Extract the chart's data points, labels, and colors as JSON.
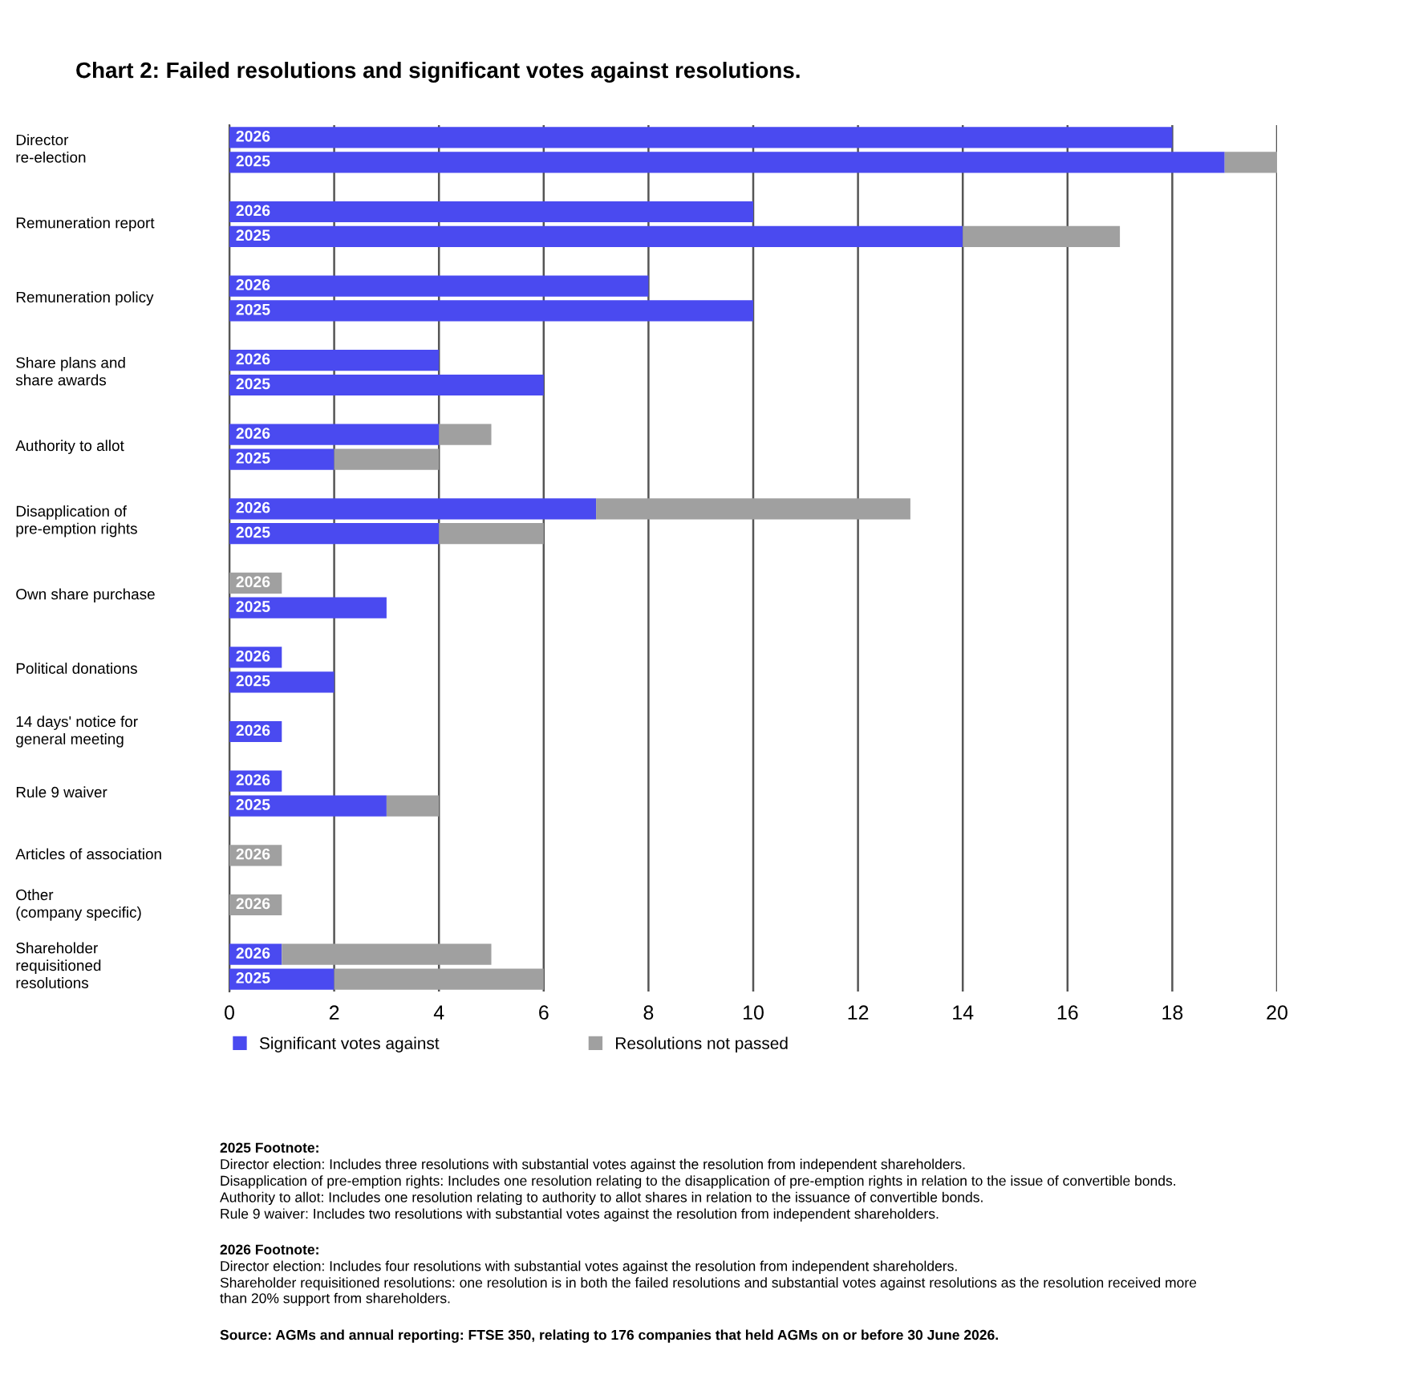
{
  "chart_data": {
    "type": "bar",
    "orientation": "horizontal",
    "stacked": true,
    "title": "Chart 2: Failed resolutions and significant votes against resolutions.",
    "categories": [
      "2026",
      "2025",
      null,
      "2026",
      "2025",
      null,
      "2026",
      "2025",
      null,
      "2026",
      "2025",
      null,
      "2026",
      "2025",
      null,
      "2026",
      "2025",
      null,
      "2026",
      "2025",
      null,
      "2026",
      "2025",
      null,
      "2026",
      null,
      "2026",
      "2025",
      null,
      "2026",
      null,
      "2026",
      null,
      "2026",
      "2025"
    ],
    "series": [
      {
        "name": "Significant votes against",
        "color": "#4a4af0",
        "values": [
          18,
          19,
          null,
          10,
          14,
          null,
          8,
          10,
          null,
          4,
          6,
          null,
          4,
          2,
          null,
          7,
          4,
          null,
          0,
          3,
          null,
          1,
          2,
          null,
          1,
          null,
          1,
          3,
          null,
          0,
          null,
          0,
          null,
          1,
          2
        ]
      },
      {
        "name": "Resolutions not passed",
        "color": "#a0a0a0",
        "values": [
          0,
          1,
          null,
          0,
          3,
          null,
          0,
          0,
          null,
          0,
          0,
          null,
          1,
          2,
          null,
          6,
          2,
          null,
          1,
          0,
          null,
          0,
          0,
          null,
          0,
          null,
          0,
          1,
          null,
          1,
          null,
          1,
          null,
          4,
          4
        ]
      }
    ],
    "xlim": [
      0,
      20
    ],
    "xticks": [
      0,
      2,
      4,
      6,
      8,
      10,
      12,
      14,
      16,
      18,
      20
    ],
    "grid": "x",
    "legend": "bottom",
    "annotations": [
      "Director\nre-election",
      "Remuneration report",
      "Remuneration policy",
      "Share plans and\nshare awards",
      "Authority to allot",
      "Disapplication of\npre-emption rights",
      "Own share purchase",
      "Political donations",
      "14 days' notice for\ngeneral meeting",
      "Rule 9 waiver",
      "Articles of association",
      "Other\n(company specific)",
      "Shareholder\nrequisitioned\nresolutions",
      "2025 Footnote:",
      "Director election: Includes three resolutions with substantial votes against the resolution from independent shareholders.",
      "Disapplication of pre-emption rights: Includes one resolution relating to the disapplication of pre-emption rights in relation to the issue of convertible bonds.",
      "Authority to allot: Includes one resolution relating to authority to allot shares in relation to the issuance of convertible bonds.",
      "Rule 9 waiver: Includes two resolutions with substantial votes against the resolution from independent shareholders.",
      "2026 Footnote:",
      "Director election: Includes four resolutions with substantial votes against the resolution from independent shareholders.",
      "Shareholder requisitioned resolutions: one resolution is in both the failed resolutions and substantial votes against resolutions as the resolution received more\nthan 20% support from shareholders.",
      "Source: AGMs and annual reporting: FTSE 350, relating to 176 companies that held AGMs on or before 30 June 2026."
    ]
  }
}
